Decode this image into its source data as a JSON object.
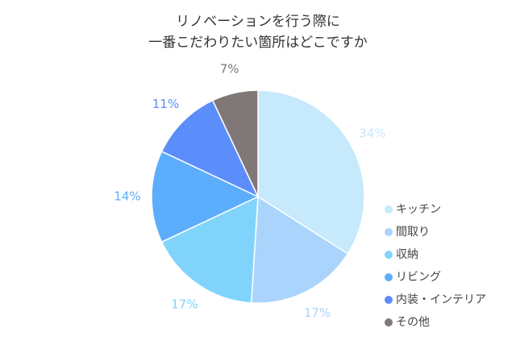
{
  "chart_data": {
    "type": "pie",
    "title": [
      "リノベーションを行う際に",
      "一番こだわりたい箇所はどこですか"
    ],
    "categories": [
      "キッチン",
      "間取り",
      "収納",
      "リビング",
      "内装・インテリア",
      "その他"
    ],
    "values": [
      34,
      17,
      17,
      14,
      11,
      7
    ],
    "value_labels": [
      "34%",
      "17%",
      "17%",
      "14%",
      "11%",
      "7%"
    ],
    "colors": [
      "#c6e9fc",
      "#aad4fc",
      "#80d4fc",
      "#5cadfc",
      "#5b8dfb",
      "#7f7877"
    ],
    "legend": "right"
  }
}
